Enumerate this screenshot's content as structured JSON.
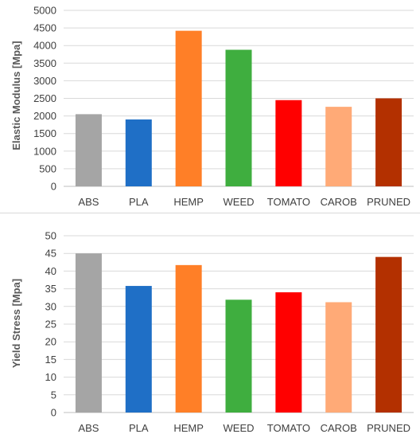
{
  "colors": {
    "grid": "#d9d9d9",
    "axis": "#bfbfbf",
    "bars": [
      "#a5a5a5",
      "#1f6fc6",
      "#ff7f27",
      "#3fae3f",
      "#ff0000",
      "#ffaa77",
      "#b33000"
    ]
  },
  "chart_data": [
    {
      "type": "bar",
      "title": "",
      "xlabel": "",
      "ylabel": "Elastic Modulus [Mpa]",
      "categories": [
        "ABS",
        "PLA",
        "HEMP",
        "WEED",
        "TOMATO",
        "CAROB",
        "PRUNED"
      ],
      "values": [
        2050,
        1900,
        4420,
        3880,
        2450,
        2260,
        2500
      ],
      "ylim": [
        0,
        5000
      ],
      "yticks": [
        0,
        500,
        1000,
        1500,
        2000,
        2500,
        3000,
        3500,
        4000,
        4500,
        5000
      ],
      "grid": true,
      "legend": "none"
    },
    {
      "type": "bar",
      "title": "",
      "xlabel": "",
      "ylabel": "Yield Stress  [Mpa]",
      "categories": [
        "ABS",
        "PLA",
        "HEMP",
        "WEED",
        "TOMATO",
        "CAROB",
        "PRUNED"
      ],
      "values": [
        45,
        35.8,
        41.7,
        31.9,
        34,
        31.2,
        44
      ],
      "ylim": [
        0,
        50
      ],
      "yticks": [
        0,
        5,
        10,
        15,
        20,
        25,
        30,
        35,
        40,
        45,
        50
      ],
      "grid": true,
      "legend": "none"
    }
  ]
}
